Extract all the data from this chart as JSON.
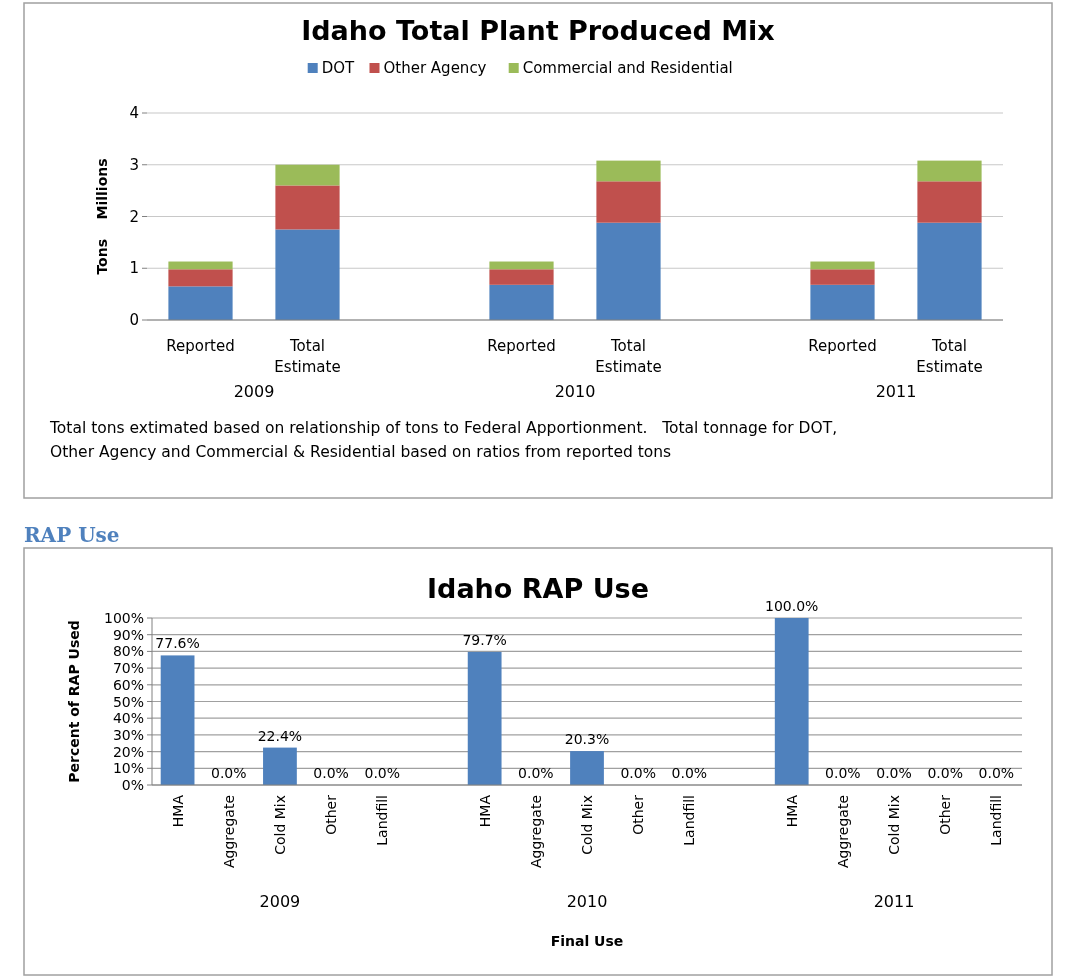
{
  "chart_data": [
    {
      "type": "bar",
      "title": "Idaho Total Plant Produced Mix",
      "ylabel": "Tons    Millions",
      "stacked": true,
      "categories": [
        "Reported",
        "Total Estimate",
        null,
        "Reported",
        "Total Estimate",
        null,
        "Reported",
        "Total Estimate"
      ],
      "series": [
        {
          "name": "DOT",
          "color": "#4f81bd",
          "values": [
            0.65,
            1.75,
            null,
            0.68,
            1.88,
            null,
            0.68,
            1.88
          ]
        },
        {
          "name": "Other Agency",
          "color": "#c0504d",
          "values": [
            0.33,
            0.85,
            null,
            0.3,
            0.8,
            null,
            0.3,
            0.8
          ]
        },
        {
          "name": "Commercial and Residential",
          "color": "#9bbb59",
          "values": [
            0.15,
            0.4,
            null,
            0.15,
            0.4,
            null,
            0.15,
            0.4
          ]
        }
      ],
      "ylim": [
        0,
        4
      ],
      "yticks": [
        0,
        1,
        2,
        3,
        4
      ],
      "grid": "y",
      "legend": "top",
      "annotations": [
        "2009",
        "2010",
        "2011",
        "Total tons extimated based on relationship of tons to Federal Apportionment.   Total tonnage for DOT, Other Agency and Commercial & Residential based on ratios from reported tons"
      ]
    },
    {
      "type": "bar",
      "title": "Idaho RAP Use",
      "subtitle": "RAP Use",
      "xlabel": "Final Use",
      "ylabel": "Percent of RAP Used",
      "categories": [
        "HMA",
        "Aggregate",
        "Cold Mix",
        "Other",
        "Landfill",
        null,
        "HMA",
        "Aggregate",
        "Cold Mix",
        "Other",
        "Landfill",
        null,
        "HMA",
        "Aggregate",
        "Cold Mix",
        "Other",
        "Landfill"
      ],
      "values": [
        77.6,
        0,
        22.4,
        0,
        0,
        null,
        79.7,
        0,
        20.3,
        0,
        0,
        null,
        100,
        0,
        0,
        0,
        0
      ],
      "value_labels": [
        "77.6%",
        "0.0%",
        "22.4%",
        "0.0%",
        "0.0%",
        null,
        "79.7%",
        "0.0%",
        "20.3%",
        "0.0%",
        "0.0%",
        null,
        "100.0%",
        "0.0%",
        "0.0%",
        "0.0%",
        "0.0%"
      ],
      "color": "#4f81bd",
      "ylim": [
        0,
        100
      ],
      "yticks": [
        {
          "value": 0,
          "label": "0%"
        },
        {
          "value": 10,
          "label": "10%"
        },
        {
          "value": 20,
          "label": "20%"
        },
        {
          "value": 30,
          "label": "30%"
        },
        {
          "value": 40,
          "label": "40%"
        },
        {
          "value": 50,
          "label": "50%"
        },
        {
          "value": 60,
          "label": "60%"
        },
        {
          "value": 70,
          "label": "70%"
        },
        {
          "value": 80,
          "label": "80%"
        },
        {
          "value": 90,
          "label": "90%"
        },
        {
          "value": 100,
          "label": "100%"
        }
      ],
      "grid": "y",
      "annotations": [
        "2009",
        "2010",
        "2011"
      ]
    }
  ]
}
